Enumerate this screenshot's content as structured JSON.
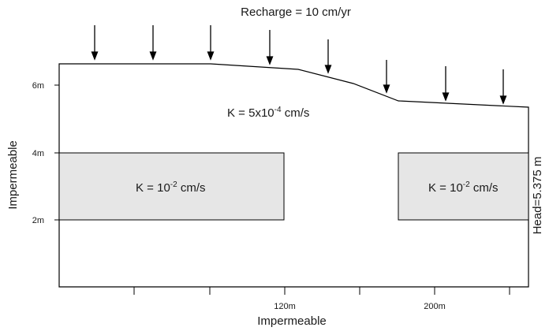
{
  "recharge": {
    "label": "Recharge = 10 cm/yr"
  },
  "domain": {
    "k_label": {
      "base": "K = 5x10",
      "exp": "-4",
      "unit": " cm/s"
    }
  },
  "zones": [
    {
      "k_base": "K = 10",
      "k_exp": "-2",
      "k_unit": " cm/s"
    },
    {
      "k_base": "K = 10",
      "k_exp": "-2",
      "k_unit": " cm/s"
    }
  ],
  "boundaries": {
    "left": "Impermeable",
    "bottom": "Impermeable",
    "right": "Head=5.375 m"
  },
  "y_ticks": [
    "6m",
    "4m",
    "2m"
  ],
  "x_ticks": [
    "120m",
    "200m"
  ],
  "colors": {
    "zone_fill": "#e6e6e6",
    "stroke": "#000000"
  }
}
